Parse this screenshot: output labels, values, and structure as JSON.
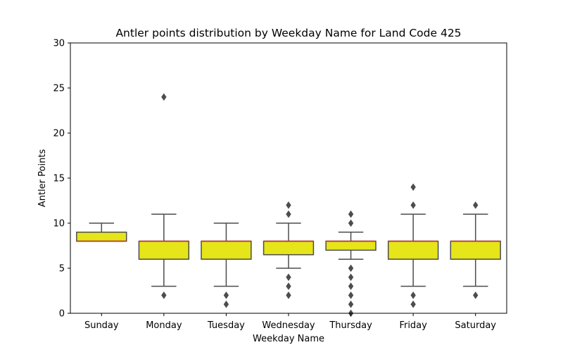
{
  "chart_data": {
    "type": "box",
    "title": "Antler points distribution by Weekday Name for Land Code 425",
    "xlabel": "Weekday Name",
    "ylabel": "Antler Points",
    "ylim": [
      0,
      30
    ],
    "yticks": [
      0,
      5,
      10,
      15,
      20,
      25,
      30
    ],
    "categories": [
      "Sunday",
      "Monday",
      "Tuesday",
      "Wednesday",
      "Thursday",
      "Friday",
      "Saturday"
    ],
    "boxes": [
      {
        "q1": 8,
        "median": 8,
        "q3": 9,
        "whisker_low": 8,
        "whisker_high": 10,
        "outliers": []
      },
      {
        "q1": 6,
        "median": 8,
        "q3": 8,
        "whisker_low": 3,
        "whisker_high": 11,
        "outliers": [
          2,
          24
        ]
      },
      {
        "q1": 6,
        "median": 8,
        "q3": 8,
        "whisker_low": 3,
        "whisker_high": 10,
        "outliers": [
          1,
          2
        ]
      },
      {
        "q1": 6.5,
        "median": 8,
        "q3": 8,
        "whisker_low": 5,
        "whisker_high": 10,
        "outliers": [
          2,
          3,
          4,
          11,
          12
        ]
      },
      {
        "q1": 7,
        "median": 8,
        "q3": 8,
        "whisker_low": 6,
        "whisker_high": 9,
        "outliers": [
          0,
          1,
          2,
          3,
          4,
          5,
          10,
          11
        ]
      },
      {
        "q1": 6,
        "median": 8,
        "q3": 8,
        "whisker_low": 3,
        "whisker_high": 11,
        "outliers": [
          1,
          2,
          12,
          14
        ]
      },
      {
        "q1": 6,
        "median": 8,
        "q3": 8,
        "whisker_low": 3,
        "whisker_high": 11,
        "outliers": [
          2,
          12
        ]
      }
    ],
    "box_fill": "#e5e51a",
    "box_edge": "#4d4d4d",
    "median_color": "#c0392b",
    "grid": false,
    "legend": "none"
  }
}
